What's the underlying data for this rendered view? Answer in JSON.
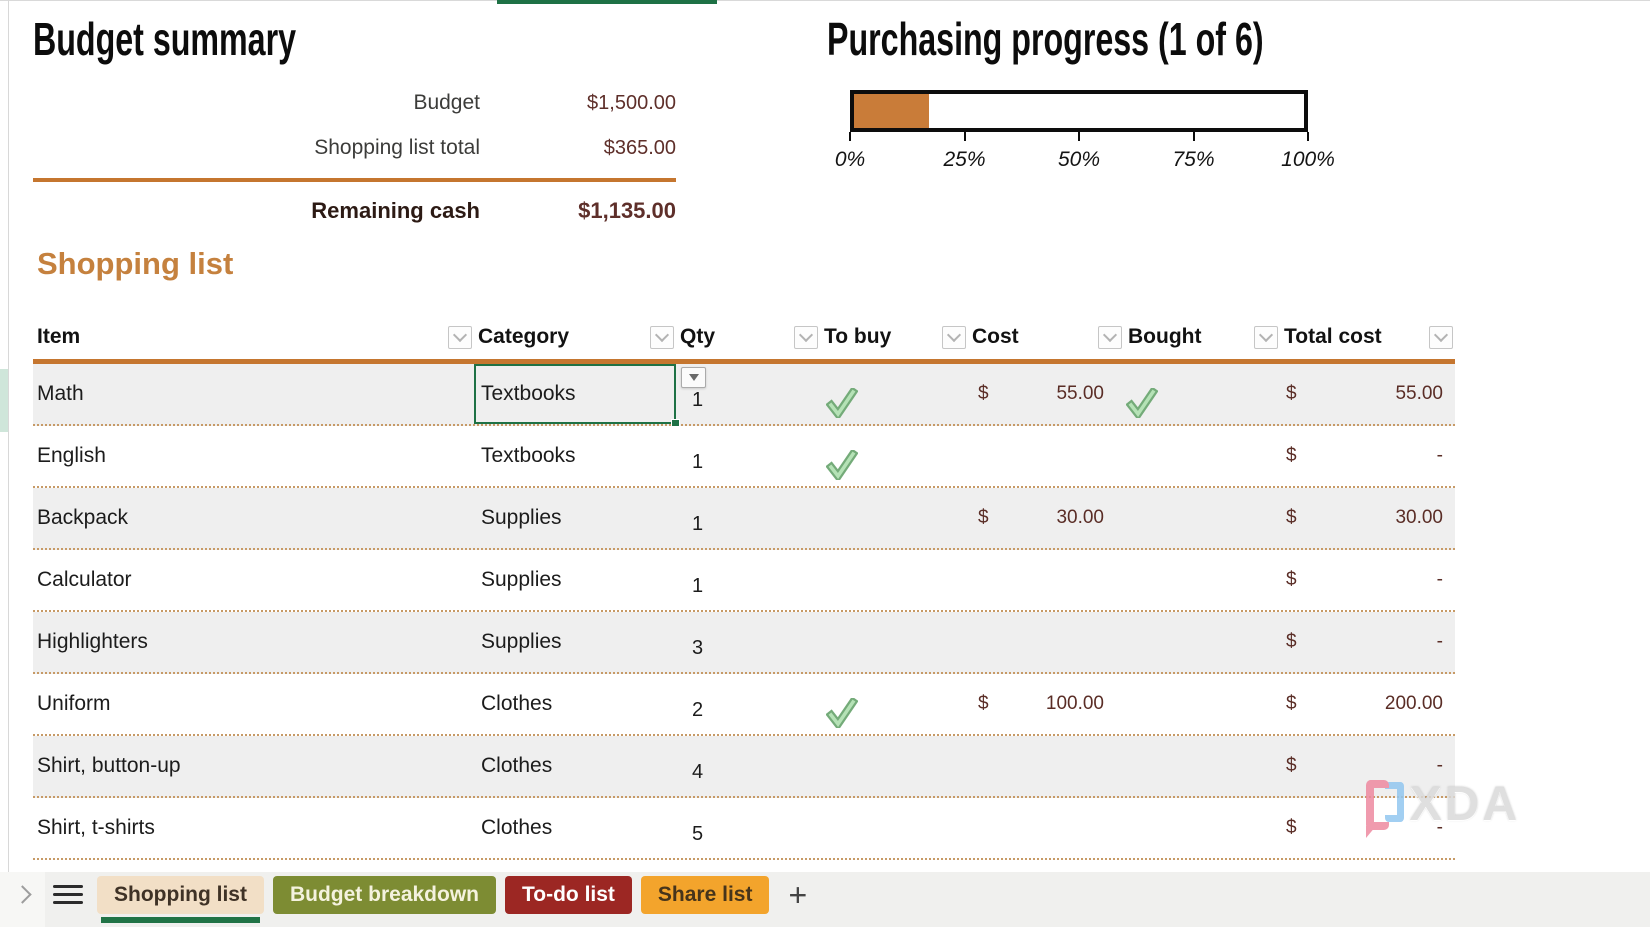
{
  "budget_summary": {
    "title": "Budget summary",
    "line_items": [
      {
        "label": "Budget",
        "value": "$1,500.00"
      },
      {
        "label": "Shopping list total",
        "value": "$365.00"
      }
    ],
    "total": {
      "label": "Remaining cash",
      "value": "$1,135.00"
    }
  },
  "progress": {
    "title": "Purchasing progress (1 of 6)",
    "completed": 1,
    "total": 6,
    "percent_complete": 16.7,
    "tick_labels": [
      "0%",
      "25%",
      "50%",
      "75%",
      "100%"
    ],
    "fill_color": "#C97C39"
  },
  "chart_data": {
    "type": "bar",
    "title": "Purchasing progress (1 of 6)",
    "categories": [
      "Purchasing progress"
    ],
    "values": [
      16.7
    ],
    "xlabel": "",
    "ylabel": "",
    "xlim": [
      0,
      100
    ],
    "tick_labels": [
      "0%",
      "25%",
      "50%",
      "75%",
      "100%"
    ],
    "orientation": "horizontal",
    "fill_color": "#C97C39"
  },
  "shopping_list": {
    "heading": "Shopping list",
    "columns": [
      "Item",
      "Category",
      "Qty",
      "To buy",
      "Cost",
      "Bought",
      "Total cost"
    ],
    "rows": [
      {
        "item": "Math",
        "category": "Textbooks",
        "qty": "1",
        "to_buy": true,
        "cost_currency": "$",
        "cost": "55.00",
        "bought": true,
        "total_currency": "$",
        "total": "55.00",
        "selected": true
      },
      {
        "item": "English",
        "category": "Textbooks",
        "qty": "1",
        "to_buy": true,
        "cost_currency": "",
        "cost": "",
        "bought": false,
        "total_currency": "$",
        "total": "-",
        "selected": false
      },
      {
        "item": "Backpack",
        "category": "Supplies",
        "qty": "1",
        "to_buy": false,
        "cost_currency": "$",
        "cost": "30.00",
        "bought": false,
        "total_currency": "$",
        "total": "30.00",
        "selected": false
      },
      {
        "item": "Calculator",
        "category": "Supplies",
        "qty": "1",
        "to_buy": false,
        "cost_currency": "",
        "cost": "",
        "bought": false,
        "total_currency": "$",
        "total": "-",
        "selected": false
      },
      {
        "item": "Highlighters",
        "category": "Supplies",
        "qty": "3",
        "to_buy": false,
        "cost_currency": "",
        "cost": "",
        "bought": false,
        "total_currency": "$",
        "total": "-",
        "selected": false
      },
      {
        "item": "Uniform",
        "category": "Clothes",
        "qty": "2",
        "to_buy": true,
        "cost_currency": "$",
        "cost": "100.00",
        "bought": false,
        "total_currency": "$",
        "total": "200.00",
        "selected": false
      },
      {
        "item": "Shirt, button-up",
        "category": "Clothes",
        "qty": "4",
        "to_buy": false,
        "cost_currency": "",
        "cost": "",
        "bought": false,
        "total_currency": "$",
        "total": "-",
        "selected": false
      },
      {
        "item": "Shirt, t-shirts",
        "category": "Clothes",
        "qty": "5",
        "to_buy": false,
        "cost_currency": "",
        "cost": "",
        "bought": false,
        "total_currency": "$",
        "total": "-",
        "selected": false
      }
    ],
    "selected_cell_color": "#1E7145"
  },
  "sheet_tabs": {
    "tabs": [
      {
        "label": "Shopping list",
        "bg": "#F2DFC6",
        "text": "#3F3226",
        "active": true
      },
      {
        "label": "Budget breakdown",
        "bg": "#7D8C33",
        "text": "#F4F2DE",
        "active": false
      },
      {
        "label": "To-do list",
        "bg": "#9C2723",
        "text": "#FFFFFF",
        "active": false
      },
      {
        "label": "Share list",
        "bg": "#F3A42C",
        "text": "#46341B",
        "active": false
      }
    ],
    "add_tab_label": "+",
    "active_underline_color": "#217346"
  },
  "accent_colors": {
    "orange_rule": "#C5762F",
    "maroon_value": "#5A2D26",
    "check_green": "#74AB79",
    "band_gray": "#EFEFEF"
  },
  "watermark": {
    "text": "XDA"
  }
}
